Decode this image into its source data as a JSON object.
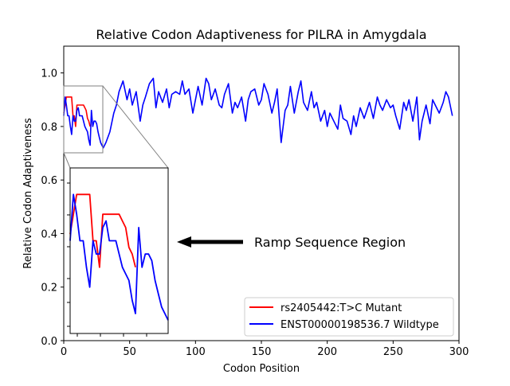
{
  "chart_data": {
    "type": "line",
    "title": "Relative Codon Adaptiveness for PILRA in Amygdala",
    "xlabel": "Codon Position",
    "ylabel": "Relative Codon Adaptiveness",
    "xlim": [
      0,
      300
    ],
    "ylim": [
      0,
      1.1
    ],
    "xticks": [
      "0",
      "50",
      "100",
      "150",
      "200",
      "250",
      "300"
    ],
    "yticks": [
      "0.0",
      "0.2",
      "0.4",
      "0.6",
      "0.8",
      "1.0"
    ],
    "legend_position": "lower-right",
    "annotation": "Ramp Sequence Region",
    "inset": {
      "x_range": [
        0,
        30
      ],
      "y_range": [
        0.7,
        0.95
      ]
    },
    "series": [
      {
        "name": "rs2405442:T>C Mutant",
        "color": "#ff0000",
        "x": [
          0,
          1,
          2,
          3,
          4,
          5,
          6,
          7,
          8,
          9,
          10,
          11,
          12,
          13,
          14,
          15,
          16,
          17,
          18,
          19,
          20
        ],
        "values": [
          0.85,
          0.88,
          0.91,
          0.91,
          0.91,
          0.91,
          0.91,
          0.84,
          0.84,
          0.8,
          0.88,
          0.88,
          0.88,
          0.88,
          0.88,
          0.88,
          0.87,
          0.86,
          0.83,
          0.82,
          0.8
        ]
      },
      {
        "name": "ENST00000198536.7 Wildtype",
        "color": "#0000ff",
        "x": [
          0,
          1,
          2,
          3,
          4,
          5,
          6,
          7,
          8,
          9,
          10,
          11,
          12,
          13,
          14,
          15,
          16,
          17,
          18,
          19,
          20,
          21,
          22,
          23,
          24,
          25,
          26,
          27,
          28,
          29,
          30,
          32,
          35,
          38,
          40,
          42,
          45,
          48,
          50,
          52,
          55,
          58,
          60,
          62,
          65,
          68,
          70,
          72,
          75,
          78,
          80,
          82,
          85,
          88,
          90,
          92,
          95,
          98,
          100,
          102,
          105,
          108,
          110,
          112,
          115,
          118,
          120,
          122,
          125,
          128,
          130,
          132,
          135,
          138,
          140,
          142,
          145,
          148,
          150,
          152,
          155,
          158,
          160,
          162,
          165,
          168,
          170,
          172,
          175,
          178,
          180,
          182,
          185,
          188,
          190,
          192,
          195,
          198,
          200,
          202,
          205,
          208,
          210,
          212,
          215,
          218,
          220,
          222,
          225,
          228,
          230,
          232,
          235,
          238,
          240,
          242,
          245,
          248,
          250,
          252,
          255,
          258,
          260,
          262,
          265,
          268,
          270,
          272,
          275,
          278,
          280,
          282,
          285,
          288,
          290,
          292,
          295
        ],
        "values": [
          0.84,
          0.91,
          0.88,
          0.84,
          0.84,
          0.8,
          0.77,
          0.84,
          0.82,
          0.82,
          0.86,
          0.87,
          0.84,
          0.84,
          0.84,
          0.82,
          0.8,
          0.79,
          0.78,
          0.75,
          0.73,
          0.86,
          0.8,
          0.82,
          0.82,
          0.81,
          0.78,
          0.76,
          0.74,
          0.73,
          0.72,
          0.74,
          0.78,
          0.85,
          0.88,
          0.93,
          0.97,
          0.9,
          0.94,
          0.88,
          0.93,
          0.82,
          0.88,
          0.91,
          0.96,
          0.98,
          0.87,
          0.93,
          0.89,
          0.94,
          0.87,
          0.92,
          0.93,
          0.92,
          0.97,
          0.92,
          0.94,
          0.85,
          0.9,
          0.95,
          0.88,
          0.98,
          0.96,
          0.9,
          0.94,
          0.88,
          0.87,
          0.92,
          0.96,
          0.85,
          0.89,
          0.87,
          0.91,
          0.82,
          0.9,
          0.93,
          0.94,
          0.88,
          0.9,
          0.96,
          0.92,
          0.85,
          0.89,
          0.94,
          0.74,
          0.86,
          0.88,
          0.95,
          0.85,
          0.93,
          0.97,
          0.89,
          0.86,
          0.93,
          0.87,
          0.89,
          0.82,
          0.86,
          0.8,
          0.85,
          0.82,
          0.79,
          0.88,
          0.83,
          0.82,
          0.77,
          0.84,
          0.8,
          0.87,
          0.83,
          0.86,
          0.89,
          0.83,
          0.91,
          0.88,
          0.86,
          0.9,
          0.87,
          0.88,
          0.84,
          0.79,
          0.89,
          0.86,
          0.9,
          0.82,
          0.91,
          0.75,
          0.82,
          0.88,
          0.81,
          0.9,
          0.88,
          0.85,
          0.89,
          0.93,
          0.91,
          0.84
        ]
      }
    ]
  }
}
